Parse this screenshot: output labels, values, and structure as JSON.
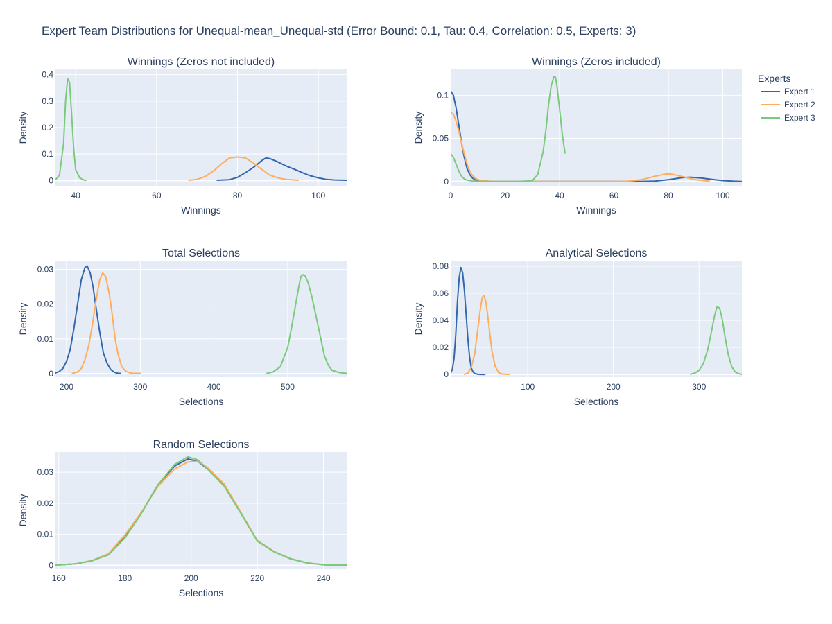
{
  "figure": {
    "title": "Expert Team Distributions for Unequal-mean_Unequal-std (Error Bound: 0.1, Tau: 0.4, Correlation: 0.5, Experts: 3)"
  },
  "legend": {
    "title": "Experts",
    "placement": "top-right",
    "items": [
      {
        "name": "Expert 1",
        "color": "#3366aa"
      },
      {
        "name": "Expert 2",
        "color": "#ffad5c"
      },
      {
        "name": "Expert 3",
        "color": "#7bc97b"
      }
    ]
  },
  "chart_data": [
    {
      "id": "winnings-nz",
      "type": "line",
      "title": "Winnings (Zeros not included)",
      "xlabel": "Winnings",
      "ylabel": "Density",
      "xlim": [
        35,
        107
      ],
      "ylim": [
        -0.02,
        0.42
      ],
      "xticks": [
        40,
        60,
        80,
        100
      ],
      "yticks": [
        0,
        0.1,
        0.2,
        0.3,
        0.4
      ],
      "ytick_labels": [
        "0",
        "0.1",
        "0.2",
        "0.3",
        "0.4"
      ],
      "grid": true,
      "series": [
        {
          "name": "Expert 1",
          "x": [
            75,
            78,
            80,
            82,
            84,
            86,
            87,
            88,
            90,
            92,
            94,
            96,
            98,
            100,
            102,
            104,
            107
          ],
          "y": [
            0.001,
            0.003,
            0.012,
            0.03,
            0.05,
            0.075,
            0.085,
            0.083,
            0.07,
            0.055,
            0.043,
            0.03,
            0.018,
            0.01,
            0.004,
            0.002,
            0.001
          ]
        },
        {
          "name": "Expert 2",
          "x": [
            68,
            70,
            72,
            74,
            76,
            78,
            80,
            82,
            84,
            86,
            88,
            90,
            92,
            95
          ],
          "y": [
            0.001,
            0.004,
            0.015,
            0.035,
            0.062,
            0.085,
            0.089,
            0.085,
            0.065,
            0.042,
            0.02,
            0.01,
            0.004,
            0.001
          ]
        },
        {
          "name": "Expert 3",
          "x": [
            35,
            36,
            37,
            37.5,
            38,
            38.5,
            39,
            39.5,
            40,
            41,
            42,
            42.5
          ],
          "y": [
            0.003,
            0.02,
            0.14,
            0.3,
            0.385,
            0.37,
            0.25,
            0.12,
            0.04,
            0.01,
            0.002,
            0.001
          ]
        }
      ]
    },
    {
      "id": "winnings-z",
      "type": "line",
      "title": "Winnings (Zeros included)",
      "xlabel": "Winnings",
      "ylabel": "Density",
      "xlim": [
        0,
        107
      ],
      "ylim": [
        -0.005,
        0.13
      ],
      "xticks": [
        0,
        20,
        40,
        60,
        80,
        100
      ],
      "yticks": [
        0,
        0.05,
        0.1
      ],
      "ytick_labels": [
        "0",
        "0.05",
        "0.1"
      ],
      "grid": true,
      "series": [
        {
          "name": "Expert 1",
          "x": [
            0,
            1,
            2,
            3,
            4,
            5,
            6,
            7,
            8,
            9,
            10,
            12,
            15,
            20,
            40,
            60,
            70,
            75,
            80,
            85,
            88,
            92,
            96,
            100,
            104,
            107
          ],
          "y": [
            0.105,
            0.1,
            0.085,
            0.065,
            0.045,
            0.028,
            0.015,
            0.008,
            0.004,
            0.002,
            0.001,
            0.0003,
            0,
            0,
            0,
            0,
            0,
            0.0005,
            0.002,
            0.0045,
            0.005,
            0.004,
            0.0025,
            0.001,
            0.0003,
            0.0001
          ]
        },
        {
          "name": "Expert 2",
          "x": [
            0,
            1,
            2,
            3,
            4,
            5,
            6,
            7,
            8,
            9,
            10,
            12,
            15,
            20,
            40,
            60,
            65,
            70,
            75,
            78,
            80,
            82,
            86,
            90,
            95
          ],
          "y": [
            0.08,
            0.078,
            0.07,
            0.058,
            0.045,
            0.032,
            0.02,
            0.012,
            0.007,
            0.004,
            0.002,
            0.0008,
            0.0002,
            0,
            0,
            0,
            0.0003,
            0.002,
            0.006,
            0.008,
            0.0088,
            0.008,
            0.005,
            0.002,
            0.0003
          ]
        },
        {
          "name": "Expert 3",
          "x": [
            0,
            1,
            2,
            3,
            4,
            5,
            6,
            8,
            10,
            15,
            20,
            25,
            30,
            32,
            34,
            35,
            36,
            37,
            38,
            38.5,
            39,
            40,
            41,
            42
          ],
          "y": [
            0.032,
            0.028,
            0.02,
            0.012,
            0.006,
            0.003,
            0.0015,
            0.0005,
            0.0002,
            0,
            0,
            0,
            0.001,
            0.008,
            0.035,
            0.06,
            0.09,
            0.112,
            0.122,
            0.121,
            0.112,
            0.085,
            0.055,
            0.033
          ]
        }
      ]
    },
    {
      "id": "total-selections",
      "type": "line",
      "title": "Total Selections",
      "xlabel": "Selections",
      "ylabel": "Density",
      "xlim": [
        185,
        580
      ],
      "ylim": [
        -0.001,
        0.0325
      ],
      "xticks": [
        200,
        300,
        400,
        500
      ],
      "yticks": [
        0,
        0.01,
        0.02,
        0.03
      ],
      "ytick_labels": [
        "0",
        "0.01",
        "0.02",
        "0.03"
      ],
      "grid": true,
      "series": [
        {
          "name": "Expert 1",
          "x": [
            185,
            190,
            195,
            200,
            205,
            210,
            215,
            220,
            225,
            228,
            232,
            236,
            240,
            245,
            250,
            255,
            260,
            265,
            270,
            273
          ],
          "y": [
            0.0002,
            0.0006,
            0.0015,
            0.0035,
            0.007,
            0.013,
            0.02,
            0.027,
            0.0305,
            0.031,
            0.029,
            0.025,
            0.019,
            0.012,
            0.006,
            0.003,
            0.0012,
            0.0004,
            0.0001,
            0.0001
          ]
        },
        {
          "name": "Expert 2",
          "x": [
            208,
            215,
            220,
            225,
            230,
            235,
            240,
            245,
            249,
            253,
            258,
            262,
            266,
            270,
            275,
            280,
            285,
            290,
            300
          ],
          "y": [
            0.0001,
            0.0005,
            0.0015,
            0.004,
            0.008,
            0.014,
            0.021,
            0.027,
            0.029,
            0.028,
            0.023,
            0.017,
            0.01,
            0.0055,
            0.002,
            0.0008,
            0.0003,
            0.0001,
            0.0001
          ]
        },
        {
          "name": "Expert 3",
          "x": [
            472,
            480,
            490,
            500,
            505,
            510,
            515,
            518,
            521,
            524,
            528,
            533,
            540,
            545,
            550,
            555,
            560,
            570,
            580
          ],
          "y": [
            0.0001,
            0.0005,
            0.002,
            0.0075,
            0.013,
            0.019,
            0.025,
            0.028,
            0.0285,
            0.028,
            0.026,
            0.022,
            0.015,
            0.01,
            0.005,
            0.0025,
            0.001,
            0.0003,
            0.0001
          ]
        }
      ]
    },
    {
      "id": "analytical-selections",
      "type": "line",
      "title": "Analytical Selections",
      "xlabel": "Selections",
      "ylabel": "Density",
      "xlim": [
        10,
        350
      ],
      "ylim": [
        -0.002,
        0.084
      ],
      "xticks": [
        100,
        200,
        300
      ],
      "yticks": [
        0,
        0.02,
        0.04,
        0.06,
        0.08
      ],
      "ytick_labels": [
        "0",
        "0.02",
        "0.04",
        "0.06",
        "0.08"
      ],
      "grid": true,
      "series": [
        {
          "name": "Expert 1",
          "x": [
            10,
            12,
            14,
            16,
            18,
            20,
            22,
            24,
            26,
            28,
            30,
            32,
            34,
            36,
            38,
            42,
            46,
            50
          ],
          "y": [
            0.001,
            0.004,
            0.012,
            0.03,
            0.055,
            0.072,
            0.079,
            0.075,
            0.062,
            0.045,
            0.027,
            0.013,
            0.005,
            0.002,
            0.0007,
            0.0001,
            0,
            0
          ]
        },
        {
          "name": "Expert 2",
          "x": [
            26,
            30,
            34,
            38,
            42,
            45,
            47,
            49,
            51,
            53,
            55,
            58,
            62,
            66,
            70,
            75,
            78
          ],
          "y": [
            0.0001,
            0.001,
            0.005,
            0.015,
            0.035,
            0.05,
            0.057,
            0.058,
            0.054,
            0.045,
            0.034,
            0.018,
            0.006,
            0.0015,
            0.0003,
            0.0001,
            0
          ]
        },
        {
          "name": "Expert 3",
          "x": [
            290,
            295,
            300,
            305,
            310,
            314,
            318,
            321,
            324,
            327,
            330,
            334,
            338,
            342,
            346,
            350
          ],
          "y": [
            0.0002,
            0.001,
            0.003,
            0.008,
            0.018,
            0.03,
            0.043,
            0.05,
            0.049,
            0.041,
            0.029,
            0.015,
            0.006,
            0.002,
            0.0006,
            0.0001
          ]
        }
      ]
    },
    {
      "id": "random-selections",
      "type": "line",
      "title": "Random Selections",
      "xlabel": "Selections",
      "ylabel": "Density",
      "xlim": [
        159,
        247
      ],
      "ylim": [
        -0.001,
        0.0365
      ],
      "xticks": [
        160,
        180,
        200,
        220,
        240
      ],
      "yticks": [
        0,
        0.01,
        0.02,
        0.03
      ],
      "ytick_labels": [
        "0",
        "0.01",
        "0.02",
        "0.03"
      ],
      "grid": true,
      "series": [
        {
          "name": "Expert 1",
          "x": [
            159,
            165,
            170,
            175,
            180,
            185,
            190,
            195,
            199,
            202,
            205,
            210,
            215,
            220,
            225,
            230,
            235,
            240,
            247
          ],
          "y": [
            0.0001,
            0.0005,
            0.0015,
            0.0035,
            0.009,
            0.017,
            0.026,
            0.032,
            0.0343,
            0.0335,
            0.031,
            0.026,
            0.017,
            0.008,
            0.0045,
            0.0022,
            0.0008,
            0.0002,
            0.0001
          ]
        },
        {
          "name": "Expert 2",
          "x": [
            159,
            165,
            170,
            175,
            180,
            185,
            190,
            195,
            199,
            202,
            205,
            210,
            215,
            220,
            225,
            230,
            235,
            240,
            247
          ],
          "y": [
            0.0001,
            0.0005,
            0.0016,
            0.0038,
            0.0098,
            0.0172,
            0.0255,
            0.031,
            0.0333,
            0.0335,
            0.0315,
            0.0262,
            0.0172,
            0.008,
            0.0045,
            0.0022,
            0.0008,
            0.0002,
            0.0001
          ]
        },
        {
          "name": "Expert 3",
          "x": [
            159,
            165,
            170,
            175,
            180,
            185,
            190,
            195,
            199,
            202,
            205,
            210,
            215,
            220,
            225,
            230,
            235,
            240,
            247
          ],
          "y": [
            0.0001,
            0.0005,
            0.0015,
            0.0034,
            0.0088,
            0.0168,
            0.026,
            0.0325,
            0.035,
            0.034,
            0.031,
            0.0255,
            0.0168,
            0.0078,
            0.0044,
            0.0021,
            0.0008,
            0.0002,
            0.0001
          ]
        }
      ]
    }
  ]
}
